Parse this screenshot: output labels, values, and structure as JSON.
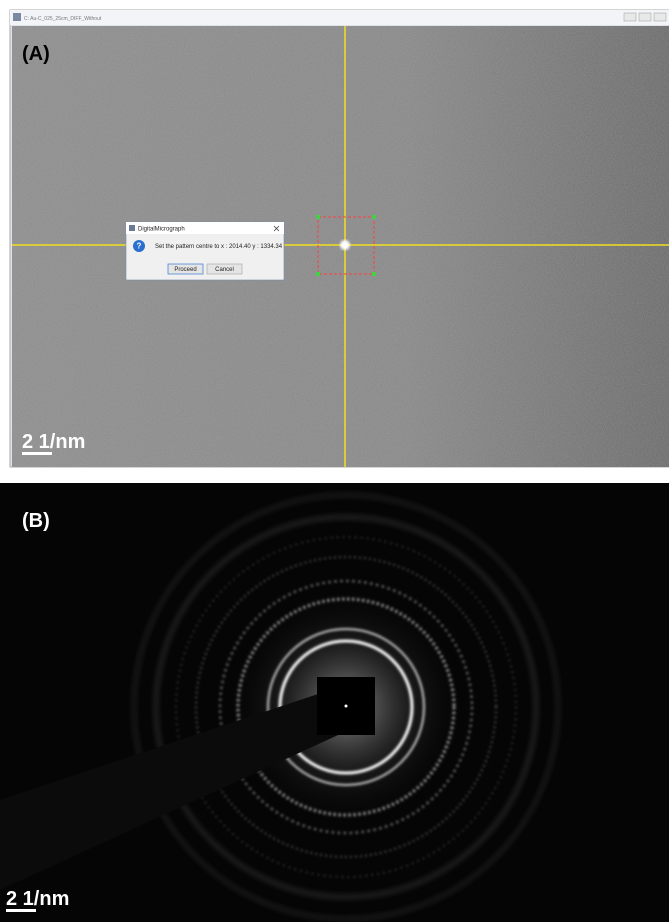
{
  "panel_a": {
    "label": "(A)",
    "window_title": "C: Au-C_025_25cm_DIFF_Without",
    "scale_bar": "2 1/nm",
    "dialog": {
      "title": "DigitalMicrograph",
      "message": "Set the pattern centre to x : 2014.40  y : 1334.34",
      "buttons": [
        "Proceed",
        "Cancel"
      ]
    }
  },
  "panel_b": {
    "label": "(B)",
    "scale_bar": "2 1/nm"
  }
}
